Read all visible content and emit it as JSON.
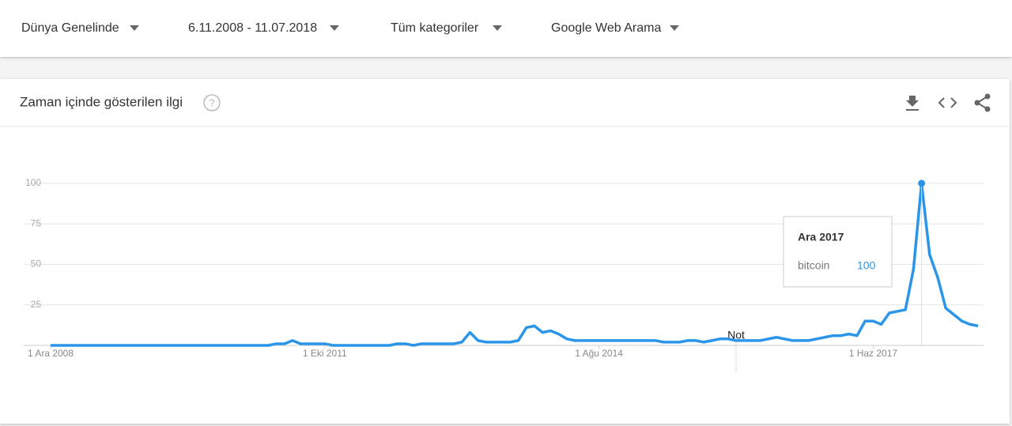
{
  "filters": [
    "Dünya Genelinde",
    "6.11.2008 - 11.07.2018",
    "Tüm kategoriler",
    "Google Web Arama"
  ],
  "card": {
    "title": "Zaman içinde gösterilen ilgi"
  },
  "chart_data": {
    "type": "line",
    "categories": [
      "1 Ara 2008",
      null,
      null,
      null,
      null,
      null,
      null,
      null,
      null,
      null,
      null,
      null,
      null,
      null,
      null,
      null,
      null,
      null,
      null,
      null,
      null,
      null,
      null,
      null,
      null,
      null,
      null,
      null,
      null,
      null,
      null,
      null,
      null,
      null,
      "1 Eki 2011",
      null,
      null,
      null,
      null,
      null,
      null,
      null,
      null,
      null,
      null,
      null,
      null,
      null,
      null,
      null,
      null,
      null,
      null,
      null,
      null,
      null,
      null,
      null,
      null,
      null,
      null,
      null,
      null,
      null,
      null,
      null,
      null,
      null,
      "1 Ağu 2014",
      null,
      null,
      null,
      null,
      null,
      null,
      null,
      null,
      null,
      null,
      null,
      null,
      null,
      null,
      null,
      null,
      null,
      null,
      null,
      null,
      null,
      null,
      null,
      null,
      null,
      null,
      null,
      null,
      null,
      null,
      null,
      null,
      null,
      "1 Haz 2017",
      null,
      null,
      null,
      null,
      null,
      null,
      null,
      null,
      null,
      null,
      null,
      null,
      null
    ],
    "series": [
      {
        "name": "bitcoin",
        "color": "#2b95e9",
        "values": [
          0,
          0,
          0,
          0,
          0,
          0,
          0,
          0,
          0,
          0,
          0,
          0,
          0,
          0,
          0,
          0,
          0,
          0,
          0,
          0,
          0,
          0,
          0,
          0,
          0,
          0,
          0,
          0,
          1,
          1,
          3,
          1,
          1,
          1,
          1,
          0,
          0,
          0,
          0,
          0,
          0,
          0,
          0,
          1,
          1,
          0,
          1,
          1,
          1,
          1,
          1,
          2,
          8,
          3,
          2,
          2,
          2,
          2,
          3,
          11,
          12,
          8,
          9,
          7,
          4,
          3,
          3,
          3,
          3,
          3,
          3,
          3,
          3,
          3,
          3,
          3,
          2,
          2,
          2,
          3,
          3,
          2,
          3,
          4,
          4,
          3,
          3,
          3,
          3,
          4,
          5,
          4,
          3,
          3,
          3,
          4,
          5,
          6,
          6,
          7,
          6,
          15,
          15,
          13,
          20,
          21,
          22,
          47,
          100,
          56,
          42,
          23,
          19,
          15,
          13,
          12
        ]
      }
    ],
    "ylim": [
      0,
      100
    ],
    "yticks": [
      25,
      50,
      75,
      100
    ],
    "grid": true,
    "note": "Not",
    "tooltip": {
      "title": "Ara 2017"
    }
  }
}
